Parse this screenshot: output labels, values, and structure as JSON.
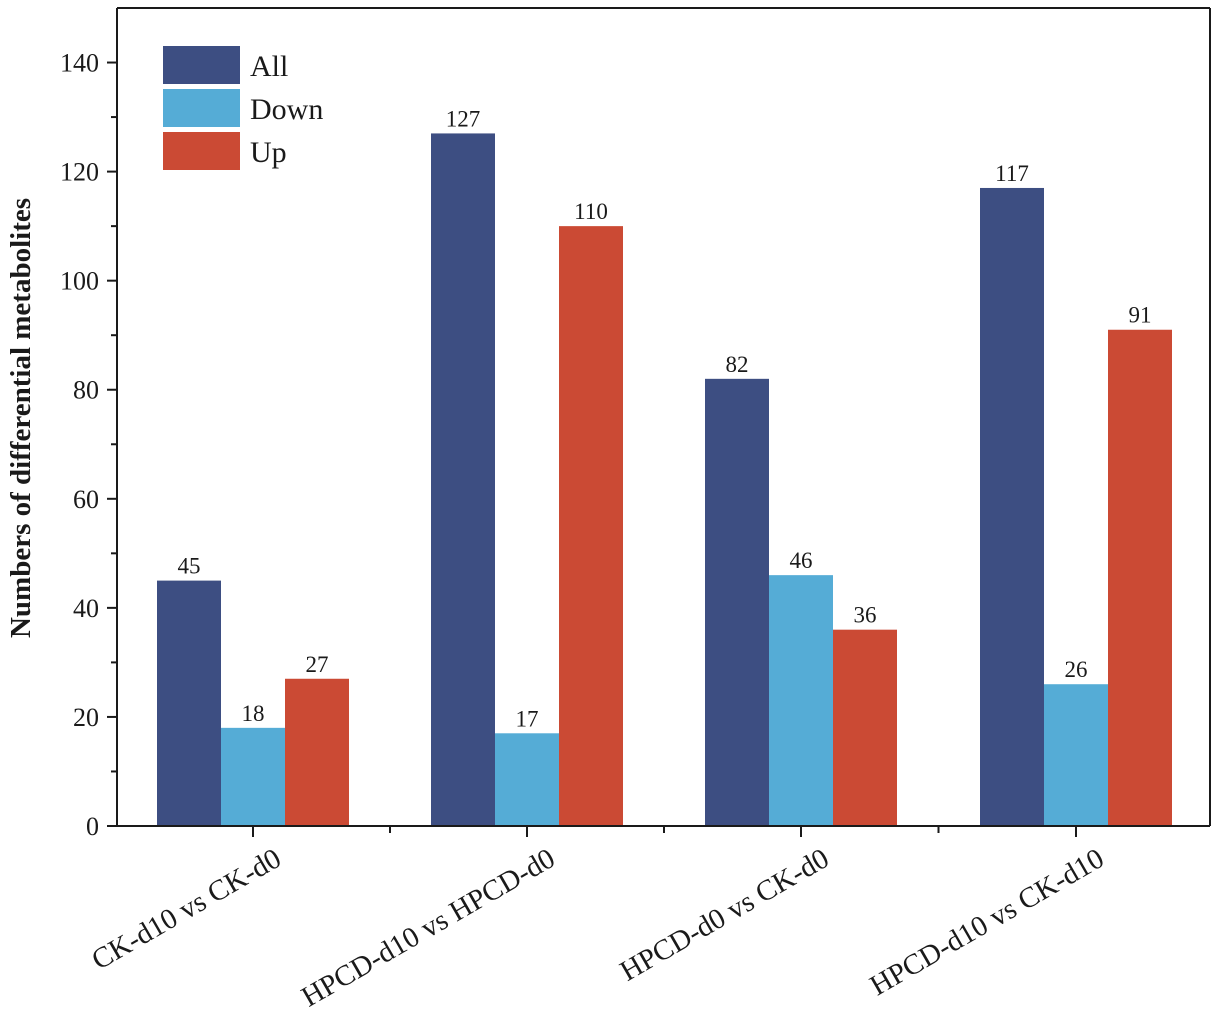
{
  "chart_data": {
    "type": "bar",
    "ylabel": "Numbers of differential metabolites",
    "xlabel": "",
    "ylim": [
      0,
      150
    ],
    "yticks": [
      0,
      20,
      40,
      60,
      80,
      100,
      120,
      140
    ],
    "grid": false,
    "legend_position": "top-left",
    "categories": [
      "CK-d10 vs CK-d0",
      "HPCD-d10 vs HPCD-d0",
      "HPCD-d0 vs CK-d0",
      "HPCD-d10 vs CK-d10"
    ],
    "series": [
      {
        "name": "All",
        "color": "#3d4e82",
        "values": [
          45,
          127,
          82,
          117
        ]
      },
      {
        "name": "Down",
        "color": "#55acd6",
        "values": [
          18,
          17,
          46,
          26
        ]
      },
      {
        "name": "Up",
        "color": "#cb4a34",
        "values": [
          27,
          110,
          36,
          91
        ]
      }
    ]
  }
}
